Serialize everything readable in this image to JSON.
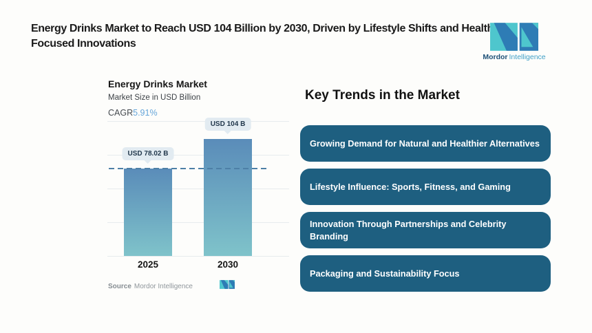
{
  "header": {
    "title": "Energy Drinks Market to Reach USD 104 Billion by 2030, Driven by Lifestyle Shifts and Health-Focused Innovations",
    "brand": {
      "bold": "Mordor",
      "light": "Intelligence"
    }
  },
  "chart": {
    "title": "Energy Drinks Market",
    "subtitle": "Market Size in USD Billion",
    "cagr_label": "CAGR",
    "cagr_value": "5.91%",
    "source_label": "Source",
    "source_value": "Mordor Intelligence"
  },
  "chart_data": {
    "type": "bar",
    "title": "Energy Drinks Market",
    "ylabel": "Market Size in USD Billion",
    "categories": [
      "2025",
      "2030"
    ],
    "values": [
      78.02,
      104
    ],
    "value_labels": [
      "USD 78.02 B",
      "USD 104 B"
    ],
    "cagr_percent": 5.91,
    "ylim": [
      0,
      120
    ],
    "grid_step": 30,
    "grid": true,
    "legend": false,
    "reference_line": 78.02,
    "bar_gradient_top": "#5a8cb9",
    "bar_gradient_bottom": "#7fc3ca"
  },
  "trends": {
    "heading": "Key Trends in the Market",
    "items": [
      "Growing Demand for Natural and Healthier Alternatives",
      "Lifestyle Influence: Sports, Fitness, and Gaming",
      "Innovation Through Partnerships and Celebrity Branding",
      "Packaging and Sustainability Focus"
    ]
  },
  "colors": {
    "page_background": "#fdfdfb",
    "title_text": "#1a1a1a",
    "card_background": "#1e5f80",
    "card_text": "#ffffff",
    "dashed_line": "#4d7fa6",
    "badge_background": "#e2ebf1",
    "cagr_value_blue": "#65a5d9",
    "logo_teal": "#4ec6cd",
    "logo_blue": "#2e7cb5"
  }
}
